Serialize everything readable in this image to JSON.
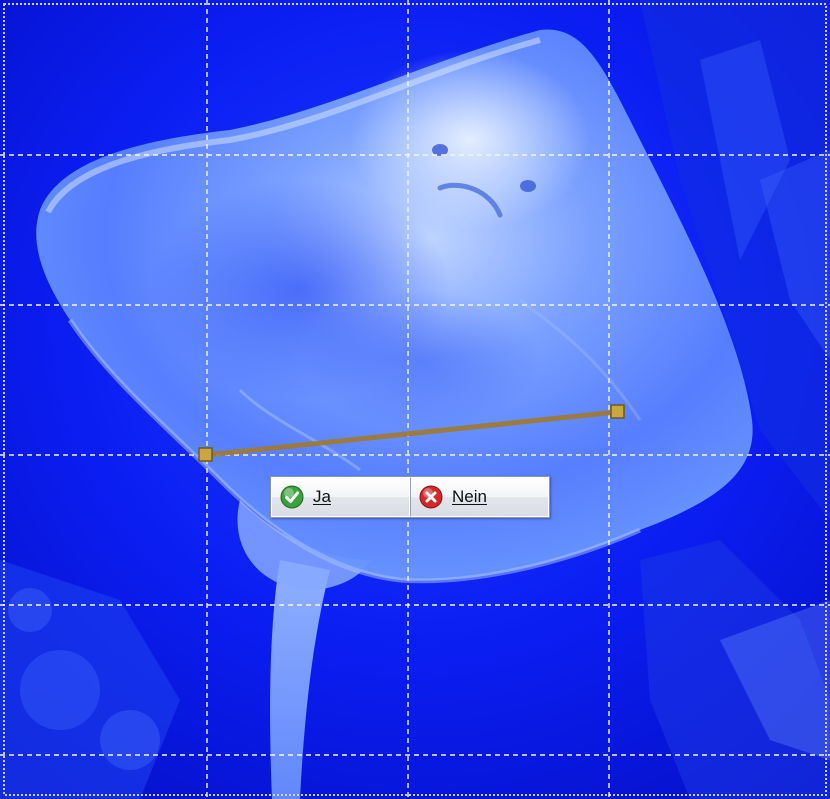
{
  "dialog": {
    "yes_label": "Ja",
    "no_label": "Nein",
    "yes_icon": "checkmark-icon",
    "no_icon": "cancel-icon"
  },
  "colors": {
    "background": "#0a18f0",
    "grid": "#f2f4ff",
    "measure_line": "#a07a30",
    "handle": "#c9a640",
    "yes_icon": "#3aa23a",
    "no_icon": "#d22a2a"
  },
  "grid": {
    "columns": 4,
    "rows": 5,
    "style": "dashed"
  }
}
